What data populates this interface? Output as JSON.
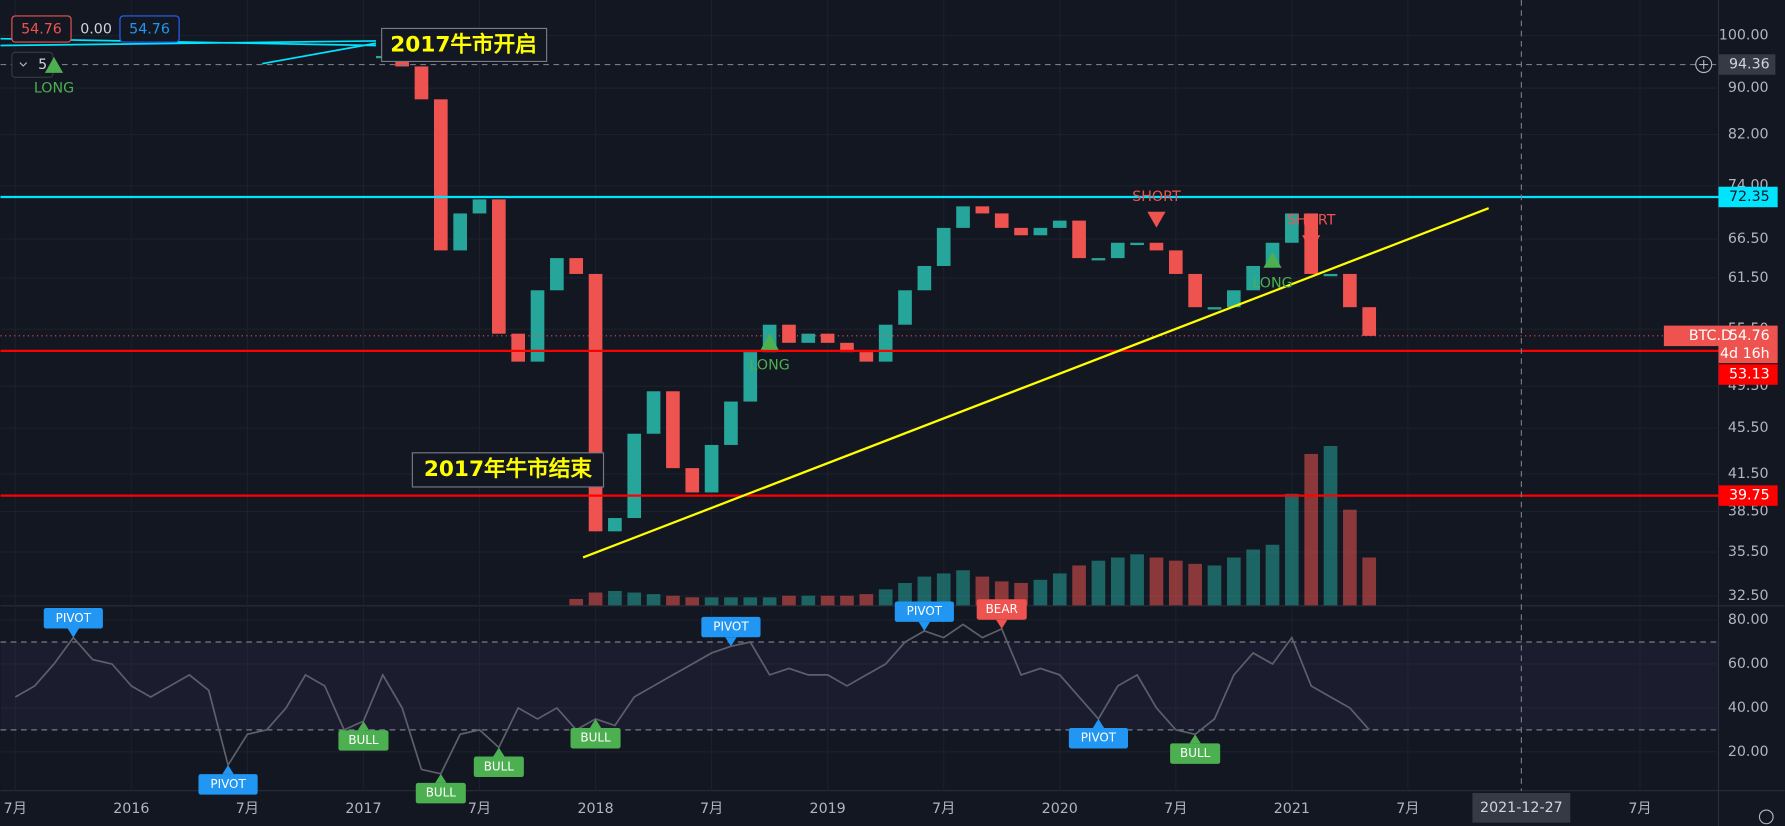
{
  "header": {
    "values": [
      "54.76",
      "0.00",
      "54.76"
    ],
    "interval": "5"
  },
  "chart_data": [
    {
      "type": "candlestick",
      "log_scale": true,
      "grid": true,
      "up_color": "#26a69a",
      "down_color": "#ef5350",
      "ylim": [
        31.9,
        107.4
      ],
      "yticks": [
        {
          "value": 100,
          "label": "100.00"
        },
        {
          "value": 90,
          "label": "90.00"
        },
        {
          "value": 82,
          "label": "82.00"
        },
        {
          "value": 74,
          "label": "74.00"
        },
        {
          "value": 66.5,
          "label": "66.50"
        },
        {
          "value": 61.5,
          "label": "61.50"
        },
        {
          "value": 55.5,
          "label": "55.50"
        },
        {
          "value": 49.5,
          "label": "49.50"
        },
        {
          "value": 45.5,
          "label": "45.50"
        },
        {
          "value": 41.5,
          "label": "41.50"
        },
        {
          "value": 38.5,
          "label": "38.50"
        },
        {
          "value": 35.5,
          "label": "35.50"
        },
        {
          "value": 32.5,
          "label": "32.50"
        }
      ],
      "xticks": [
        {
          "value": "2015-07",
          "label": "7月"
        },
        {
          "value": "2016-01",
          "label": "2016"
        },
        {
          "value": "2016-07",
          "label": "7月"
        },
        {
          "value": "2017-01",
          "label": "2017"
        },
        {
          "value": "2017-07",
          "label": "7月"
        },
        {
          "value": "2018-01",
          "label": "2018"
        },
        {
          "value": "2018-07",
          "label": "7月"
        },
        {
          "value": "2019-01",
          "label": "2019"
        },
        {
          "value": "2019-07",
          "label": "7月"
        },
        {
          "value": "2020-01",
          "label": "2020"
        },
        {
          "value": "2020-07",
          "label": "7月"
        },
        {
          "value": "2021-01",
          "label": "2021"
        },
        {
          "value": "2021-07",
          "label": "7月"
        },
        {
          "value": "2022-07",
          "label": "7月"
        }
      ],
      "x": [
        "2017-02",
        "2017-03",
        "2017-04",
        "2017-05",
        "2017-06",
        "2017-07",
        "2017-08",
        "2017-09",
        "2017-10",
        "2017-11",
        "2017-12",
        "2018-01",
        "2018-02",
        "2018-03",
        "2018-04",
        "2018-05",
        "2018-06",
        "2018-07",
        "2018-08",
        "2018-09",
        "2018-10",
        "2018-11",
        "2018-12",
        "2019-01",
        "2019-02",
        "2019-03",
        "2019-04",
        "2019-05",
        "2019-06",
        "2019-07",
        "2019-08",
        "2019-09",
        "2019-10",
        "2019-11",
        "2019-12",
        "2020-01",
        "2020-02",
        "2020-03",
        "2020-04",
        "2020-05",
        "2020-06",
        "2020-07",
        "2020-08",
        "2020-09",
        "2020-10",
        "2020-11",
        "2020-12",
        "2021-01",
        "2021-02",
        "2021-03",
        "2021-04",
        "2021-05"
      ],
      "values": [
        96,
        94,
        88,
        65,
        70,
        72,
        55,
        52,
        60,
        64,
        62,
        37,
        38,
        45,
        49,
        42,
        40,
        44,
        48,
        53,
        56,
        54,
        55,
        54,
        53,
        52,
        56,
        60,
        63,
        68,
        71,
        70,
        68,
        67,
        68,
        69,
        64,
        64,
        66,
        66,
        65,
        62,
        58,
        58,
        60,
        63,
        66,
        70,
        62,
        62,
        58,
        54.76
      ],
      "volume": {
        "x": [
          "2017-12",
          "2018-01",
          "2018-02",
          "2018-03",
          "2018-04",
          "2018-05",
          "2018-06",
          "2018-07",
          "2018-08",
          "2018-09",
          "2018-10",
          "2018-11",
          "2018-12",
          "2019-01",
          "2019-02",
          "2019-03",
          "2019-04",
          "2019-05",
          "2019-06",
          "2019-07",
          "2019-08",
          "2019-09",
          "2019-10",
          "2019-11",
          "2019-12",
          "2020-01",
          "2020-02",
          "2020-03",
          "2020-04",
          "2020-05",
          "2020-06",
          "2020-07",
          "2020-08",
          "2020-09",
          "2020-10",
          "2020-11",
          "2020-12",
          "2021-01",
          "2021-02",
          "2021-03",
          "2021-04",
          "2021-05"
        ],
        "values": [
          4,
          8,
          9,
          8,
          7,
          6,
          5,
          5,
          5,
          5,
          5,
          6,
          6,
          6,
          6,
          7,
          10,
          14,
          18,
          20,
          22,
          18,
          15,
          14,
          16,
          20,
          25,
          28,
          30,
          32,
          30,
          28,
          26,
          25,
          30,
          35,
          38,
          70,
          95,
          100,
          60,
          30
        ],
        "y2lim": [
          0,
          100
        ]
      },
      "levels": [
        {
          "value": 72.35,
          "label": "72.35",
          "color": "#00e5ff"
        },
        {
          "value": 53.13,
          "label": "53.13",
          "color": "#ff0000"
        },
        {
          "value": 39.75,
          "label": "39.75",
          "color": "#ff0000"
        }
      ],
      "last": {
        "name": "BTC.D",
        "value": 54.76,
        "countdown": "4d 16h"
      },
      "crosshair": {
        "x": "2021-12-27",
        "y": 94.36
      },
      "signals": [
        {
          "x": "2015-09",
          "label": "LONG",
          "color": "#4caf50"
        },
        {
          "x": "2018-10",
          "label": "LONG",
          "color": "#4caf50"
        },
        {
          "x": "2020-06",
          "label": "SHORT",
          "color": "#ef5350"
        },
        {
          "x": "2020-12",
          "label": "LONG",
          "color": "#4caf50"
        },
        {
          "x": "2021-02",
          "label": "SHORT",
          "color": "#ef5350"
        }
      ],
      "annotations": [
        "2017牛市开启",
        "2017年牛市结束"
      ]
    },
    {
      "type": "line",
      "color": "#5d606b",
      "ylim": [
        2.3,
        86.2
      ],
      "yticks": [
        {
          "value": 80,
          "label": "80.00"
        },
        {
          "value": 60,
          "label": "60.00"
        },
        {
          "value": 40,
          "label": "40.00"
        },
        {
          "value": 20,
          "label": "20.00"
        }
      ],
      "band": [
        30,
        70
      ],
      "x": [
        "2015-07",
        "2015-08",
        "2015-09",
        "2015-10",
        "2015-11",
        "2015-12",
        "2016-01",
        "2016-02",
        "2016-03",
        "2016-04",
        "2016-05",
        "2016-06",
        "2016-07",
        "2016-08",
        "2016-09",
        "2016-10",
        "2016-11",
        "2016-12",
        "2017-01",
        "2017-02",
        "2017-03",
        "2017-04",
        "2017-05",
        "2017-06",
        "2017-07",
        "2017-08",
        "2017-09",
        "2017-10",
        "2017-11",
        "2017-12",
        "2018-01",
        "2018-02",
        "2018-03",
        "2018-04",
        "2018-05",
        "2018-06",
        "2018-07",
        "2018-08",
        "2018-09",
        "2018-10",
        "2018-11",
        "2018-12",
        "2019-01",
        "2019-02",
        "2019-03",
        "2019-04",
        "2019-05",
        "2019-06",
        "2019-07",
        "2019-08",
        "2019-09",
        "2019-10",
        "2019-11",
        "2019-12",
        "2020-01",
        "2020-02",
        "2020-03",
        "2020-04",
        "2020-05",
        "2020-06",
        "2020-07",
        "2020-08",
        "2020-09",
        "2020-10",
        "2020-11",
        "2020-12",
        "2021-01",
        "2021-02",
        "2021-03",
        "2021-04",
        "2021-05"
      ],
      "values": [
        45,
        50,
        60,
        72,
        62,
        60,
        50,
        45,
        50,
        55,
        48,
        14,
        28,
        30,
        40,
        55,
        50,
        30,
        34,
        55,
        40,
        12,
        10,
        28,
        30,
        22,
        40,
        35,
        40,
        30,
        35,
        32,
        45,
        50,
        55,
        60,
        65,
        68,
        70,
        55,
        58,
        55,
        55,
        50,
        55,
        60,
        70,
        75,
        72,
        78,
        72,
        76,
        55,
        58,
        55,
        45,
        35,
        50,
        55,
        40,
        30,
        28,
        35,
        55,
        65,
        60,
        72,
        50,
        45,
        40,
        30
      ],
      "labels": [
        {
          "x": "2015-10",
          "label": "PIVOT",
          "color": "#2196f3"
        },
        {
          "x": "2016-06",
          "label": "PIVOT",
          "color": "#2196f3"
        },
        {
          "x": "2017-01",
          "label": "BULL",
          "color": "#4caf50"
        },
        {
          "x": "2017-05",
          "label": "BULL",
          "color": "#4caf50"
        },
        {
          "x": "2017-08",
          "label": "BULL",
          "color": "#4caf50"
        },
        {
          "x": "2018-01",
          "label": "BULL",
          "color": "#4caf50"
        },
        {
          "x": "2018-08",
          "label": "PIVOT",
          "color": "#2196f3"
        },
        {
          "x": "2019-06",
          "label": "PIVOT",
          "color": "#2196f3"
        },
        {
          "x": "2019-10",
          "label": "BEAR",
          "color": "#ef5350"
        },
        {
          "x": "2020-03",
          "label": "PIVOT",
          "color": "#2196f3"
        },
        {
          "x": "2020-08",
          "label": "BULL",
          "color": "#4caf50"
        }
      ]
    }
  ]
}
